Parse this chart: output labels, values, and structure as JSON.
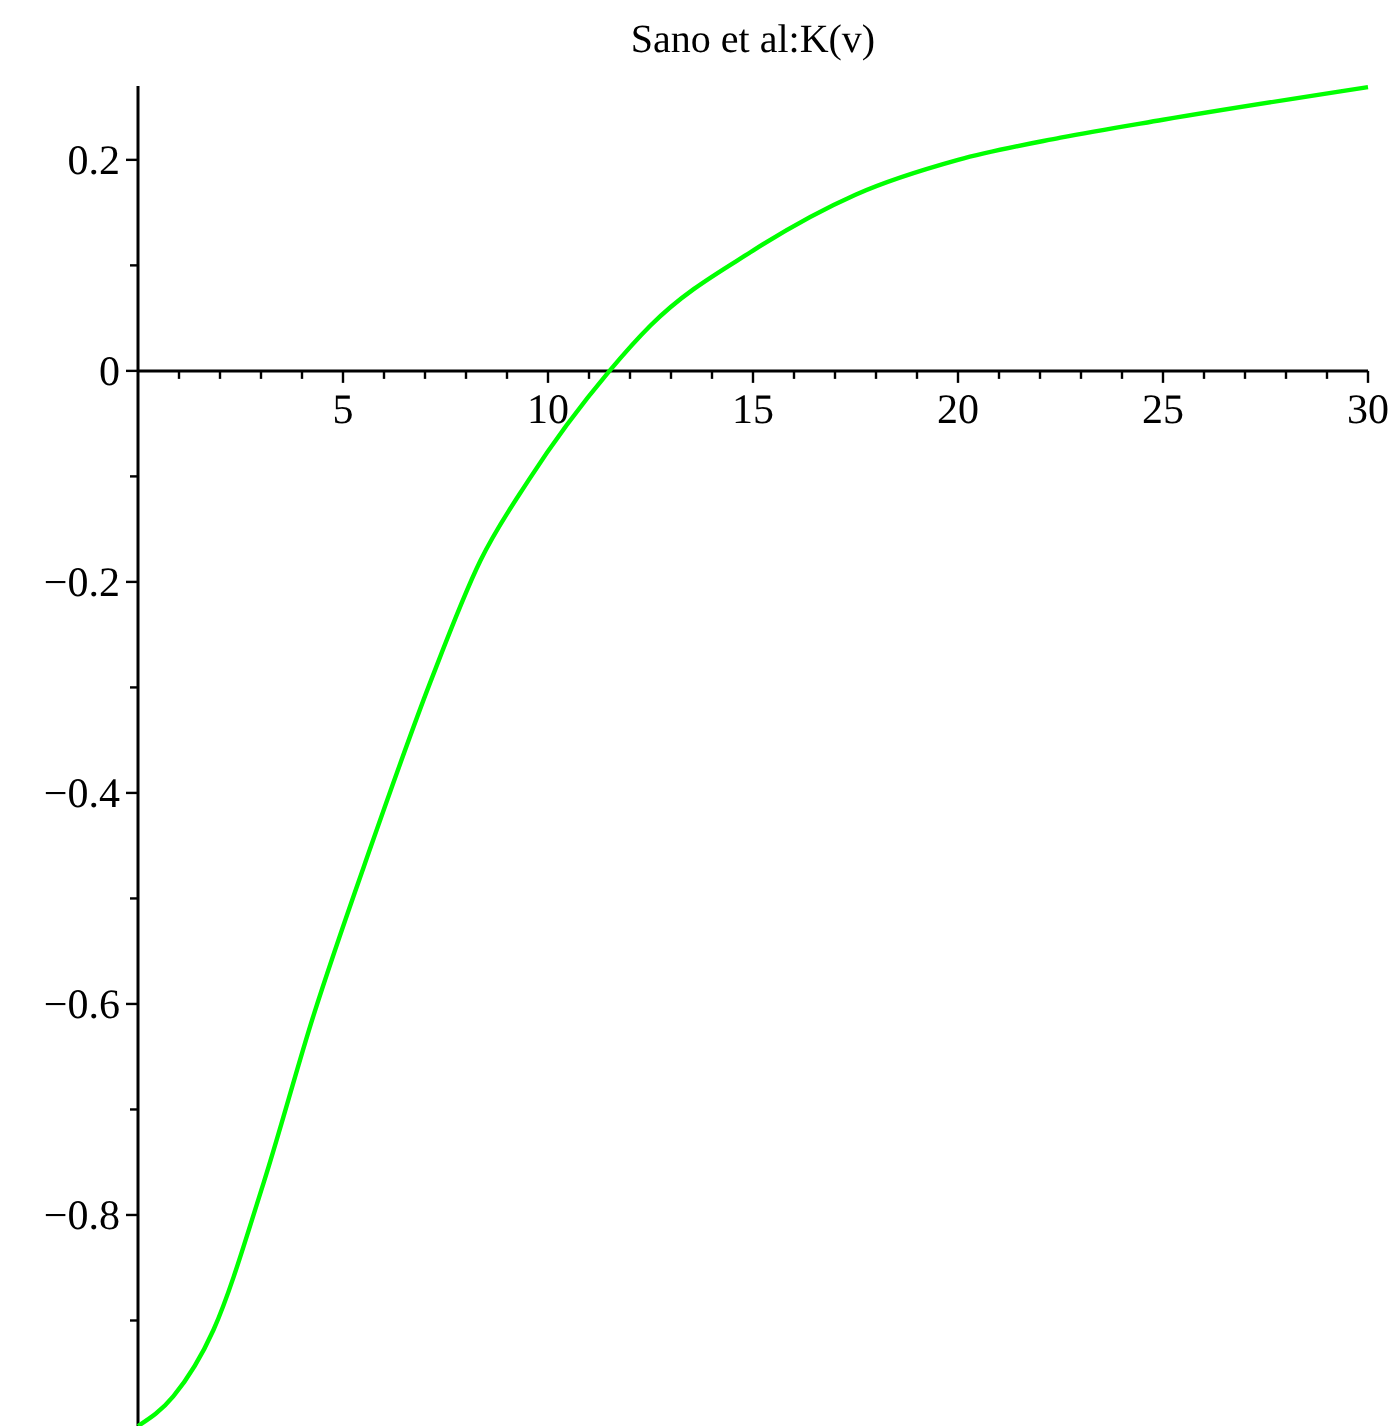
{
  "chart_data": {
    "type": "line",
    "title": "Sano et al:K(v)",
    "series": [
      {
        "color": "#00ff00",
        "x": [
          0,
          0.86,
          1.84,
          3.06,
          4.28,
          5.66,
          7.13,
          8.35,
          9.52,
          11.5,
          12.5,
          15,
          17.5,
          20,
          22.5,
          25,
          30
        ],
        "values": [
          -1,
          -0.972,
          -0.909,
          -0.77,
          -0.611,
          -0.453,
          -0.295,
          -0.18,
          -0.104,
          0,
          0.043,
          0.114,
          0.167,
          0.2,
          0.221,
          0.238,
          0.269
        ]
      }
    ],
    "xlim": [
      0,
      30
    ],
    "ylim": [
      -1,
      0.27
    ],
    "xticks": [
      {
        "value": 1,
        "label": null
      },
      {
        "value": 2,
        "label": null
      },
      {
        "value": 3,
        "label": null
      },
      {
        "value": 4,
        "label": null
      },
      5,
      {
        "value": 6,
        "label": null
      },
      {
        "value": 7,
        "label": null
      },
      {
        "value": 8,
        "label": null
      },
      {
        "value": 9,
        "label": null
      },
      10,
      {
        "value": 11,
        "label": null
      },
      {
        "value": 12,
        "label": null
      },
      {
        "value": 13,
        "label": null
      },
      {
        "value": 14,
        "label": null
      },
      15,
      {
        "value": 16,
        "label": null
      },
      {
        "value": 17,
        "label": null
      },
      {
        "value": 18,
        "label": null
      },
      {
        "value": 19,
        "label": null
      },
      20,
      {
        "value": 21,
        "label": null
      },
      {
        "value": 22,
        "label": null
      },
      {
        "value": 23,
        "label": null
      },
      {
        "value": 24,
        "label": null
      },
      25,
      {
        "value": 26,
        "label": null
      },
      {
        "value": 27,
        "label": null
      },
      {
        "value": 28,
        "label": null
      },
      {
        "value": 29,
        "label": null
      },
      30
    ],
    "yticks": [
      {
        "value": -0.9,
        "label": null
      },
      {
        "value": -0.8,
        "label": "−0.8"
      },
      {
        "value": -0.7,
        "label": null
      },
      {
        "value": -0.6,
        "label": "−0.6"
      },
      {
        "value": -0.5,
        "label": null
      },
      {
        "value": -0.4,
        "label": "−0.4"
      },
      {
        "value": -0.3,
        "label": null
      },
      {
        "value": -0.2,
        "label": "−0.2"
      },
      {
        "value": -0.1,
        "label": null
      },
      0,
      {
        "value": 0.1,
        "label": null
      },
      0.2
    ],
    "grid": false,
    "line_style": "solid",
    "marker": "none"
  }
}
